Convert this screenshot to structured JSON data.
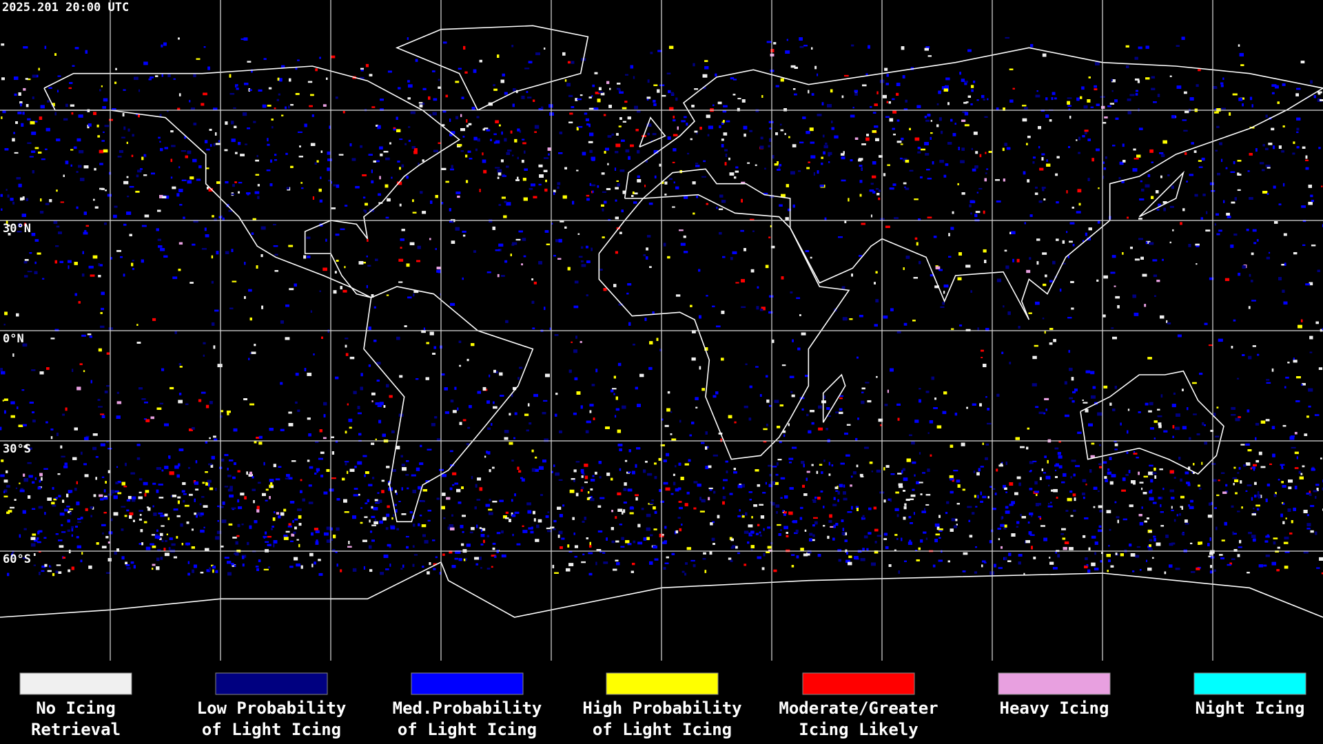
{
  "header": {
    "timestamp": "2025.201 20:00 UTC"
  },
  "lat_labels": [
    "30°N",
    "0°N",
    "30°S",
    "60°S"
  ],
  "legend": [
    {
      "color": "#f0f0f0",
      "lines": [
        "No Icing",
        "Retrieval"
      ]
    },
    {
      "color": "#000080",
      "lines": [
        "Low Probability",
        "of Light Icing"
      ]
    },
    {
      "color": "#0000ff",
      "lines": [
        "Med.Probability",
        "of Light Icing"
      ]
    },
    {
      "color": "#ffff00",
      "lines": [
        "High Probability",
        "of Light Icing"
      ]
    },
    {
      "color": "#ff0000",
      "lines": [
        "Moderate/Greater",
        "Icing Likely"
      ]
    },
    {
      "color": "#e8a0e0",
      "lines": [
        "Heavy Icing"
      ]
    },
    {
      "color": "#00ffff",
      "lines": [
        "Night Icing"
      ]
    }
  ]
}
